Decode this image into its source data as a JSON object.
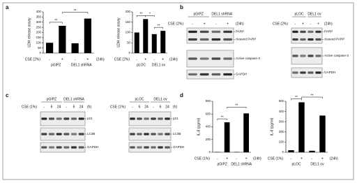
{
  "panel_letters": [
    "a",
    "b",
    "c",
    "d"
  ],
  "chart_data": [
    {
      "type": "bar",
      "y_label": "LDH release assay",
      "x_label": "CSE (2%)",
      "x_unit": "(24h)",
      "categories": [
        "-",
        "+",
        "-",
        "+"
      ],
      "group_labels": [
        "pGIPZ",
        "DEL1 shRNA"
      ],
      "values": [
        100,
        265,
        95,
        335
      ],
      "color": "#000000",
      "ylim": [
        0,
        400
      ],
      "yticks": [
        0,
        50,
        100,
        150,
        200,
        250,
        300,
        350,
        400
      ],
      "annotations": [
        "**",
        "**"
      ]
    },
    {
      "type": "bar",
      "y_label": "LDH release assay",
      "x_label": "CSE (2%)",
      "x_unit": "(24h)",
      "categories": [
        "-",
        "+",
        "-",
        "+"
      ],
      "group_labels": [
        "pLOC",
        "DEL1 ov"
      ],
      "values": [
        100,
        165,
        92,
        108
      ],
      "color": "#000000",
      "ylim": [
        0,
        200
      ],
      "yticks": [
        0,
        50,
        100,
        150,
        200
      ],
      "annotations": [
        "**",
        "*",
        "**"
      ]
    },
    {
      "type": "bar",
      "y_label": "IL-8 (pg/ml)",
      "x_label": "CSE (1%)",
      "x_unit": "(24h)",
      "categories": [
        "-",
        "+",
        "-",
        "+"
      ],
      "group_labels": [
        "pGIPZ",
        "DEL1 shRNA"
      ],
      "values": [
        5,
        470,
        5,
        610
      ],
      "color": "#000000",
      "ylim": [
        0,
        800
      ],
      "yticks": [
        0,
        200,
        400,
        600,
        800
      ],
      "annotations": [
        "**",
        "**"
      ]
    },
    {
      "type": "bar",
      "y_label": "IL-8 (pg/ml)",
      "x_label": "CSE (1%)",
      "x_unit": "(24h)",
      "categories": [
        "-",
        "+",
        "-",
        "+"
      ],
      "group_labels": [
        "pLOC",
        "DEL1 ov"
      ],
      "values": [
        20,
        490,
        15,
        360
      ],
      "color": "#000000",
      "ylim": [
        0,
        500
      ],
      "yticks": [
        0,
        100,
        200,
        300,
        400,
        500
      ],
      "annotations": [
        "**",
        "**"
      ]
    }
  ],
  "blots": [
    {
      "groups": [
        "pGIPZ",
        "DEL1 shRNA"
      ],
      "condition_label": "CSE (2%)",
      "lanes": [
        "-",
        "+",
        "-",
        "+"
      ],
      "unit": "(24h)",
      "bands": [
        "PARP",
        "cleaved PARP",
        "Active caspase-3",
        "GAPDH"
      ]
    },
    {
      "groups": [
        "pLOC",
        "DEL1 ov"
      ],
      "condition_label": "CSE (2%)",
      "lanes": [
        "-",
        "+",
        "-",
        "+"
      ],
      "unit": "(24h)",
      "bands": [
        "PARP",
        "cleaved PARP",
        "Active caspase-3",
        "GAPDH"
      ]
    },
    {
      "groups": [
        "pGIPZ",
        "DEL1 shRNA"
      ],
      "condition_label": "CSE (1%)",
      "lanes": [
        "-",
        "6",
        "24",
        "-",
        "6",
        "24"
      ],
      "unit": "(h)",
      "bands": [
        "p21",
        "LC3B",
        "GAPDH"
      ]
    },
    {
      "groups": [
        "pLOC",
        "DEL1 ov"
      ],
      "condition_label": "CSE (1%)",
      "lanes": [
        "-",
        "6",
        "24",
        "-",
        "6",
        "24"
      ],
      "unit": "(h)",
      "bands": [
        "p21",
        "LC3B",
        "GAPDH"
      ]
    }
  ]
}
